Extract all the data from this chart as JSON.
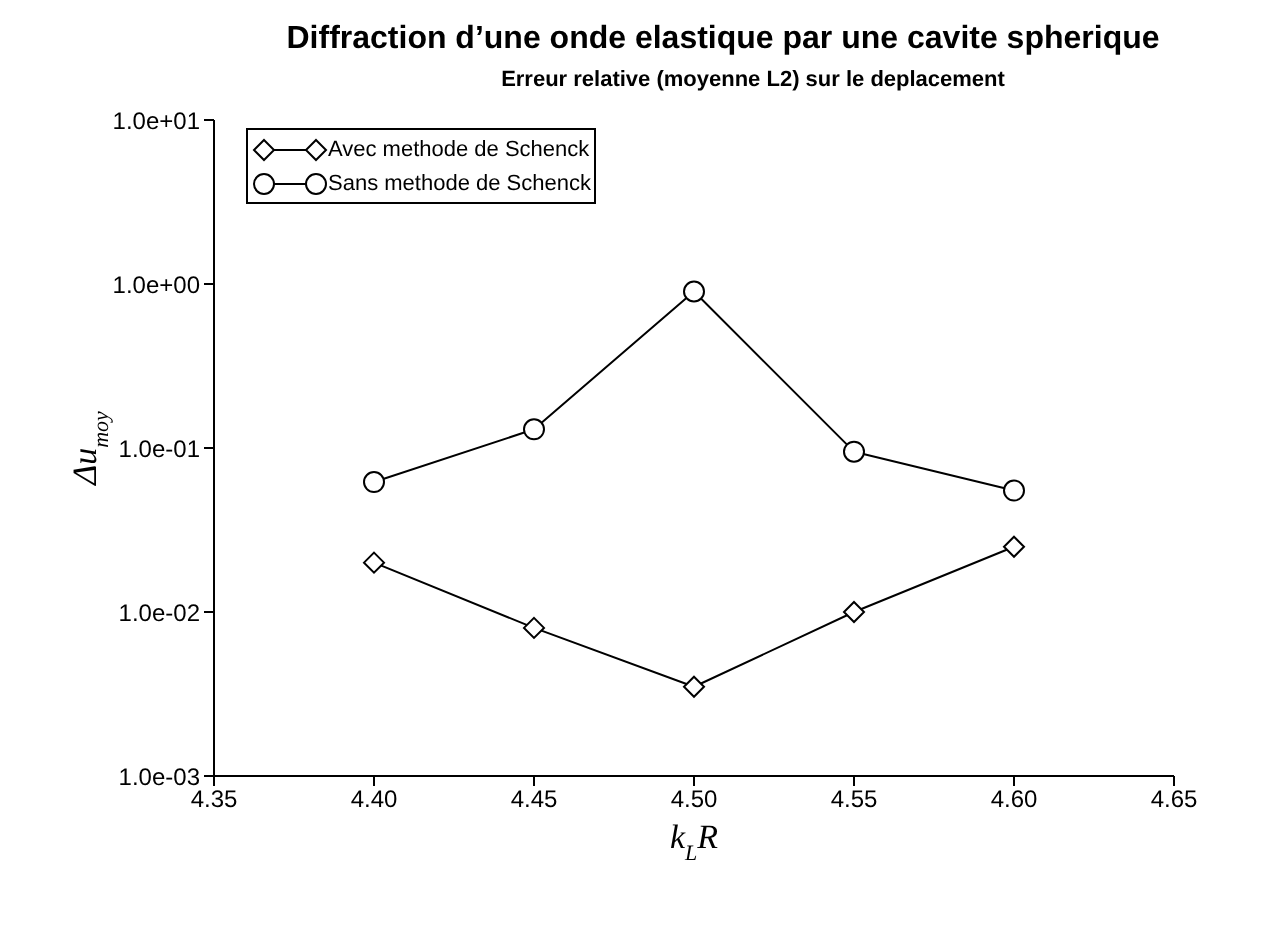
{
  "chart_data": {
    "type": "line",
    "title": "Diffraction d’une onde elastique par une cavite spherique",
    "subtitle": "Erreur relative (moyenne L2) sur le deplacement",
    "xlabel": "k$_{L}$R",
    "ylabel": "Δu$_{moy}$",
    "x": [
      4.4,
      4.45,
      4.5,
      4.55,
      4.6
    ],
    "series": [
      {
        "name": "Avec methode de Schenck",
        "color": "#000000",
        "marker": "diamond",
        "values": [
          0.02,
          0.008,
          0.0035,
          0.01,
          0.025
        ]
      },
      {
        "name": "Sans methode de Schenck",
        "color": "#000000",
        "marker": "circle",
        "values": [
          0.062,
          0.13,
          0.9,
          0.095,
          0.055
        ]
      }
    ],
    "log": "y",
    "xlim": [
      4.35,
      4.65
    ],
    "xticks": [
      {
        "value": 4.35,
        "label": "4.35"
      },
      {
        "value": 4.4,
        "label": "4.40"
      },
      {
        "value": 4.45,
        "label": "4.45"
      },
      {
        "value": 4.5,
        "label": "4.50"
      },
      {
        "value": 4.55,
        "label": "4.55"
      },
      {
        "value": 4.6,
        "label": "4.60"
      },
      {
        "value": 4.65,
        "label": "4.65"
      }
    ],
    "ylim": [
      0.001,
      10
    ],
    "yticks": [
      {
        "value": 0.001,
        "label": "1.0e-03"
      },
      {
        "value": 0.01,
        "label": "1.0e-02"
      },
      {
        "value": 0.1,
        "label": "1.0e-01"
      },
      {
        "value": 1,
        "label": "1.0e+00"
      },
      {
        "value": 10,
        "label": "1.0e+01"
      }
    ],
    "grid": false,
    "legend": "top left",
    "line_style": "solid"
  }
}
